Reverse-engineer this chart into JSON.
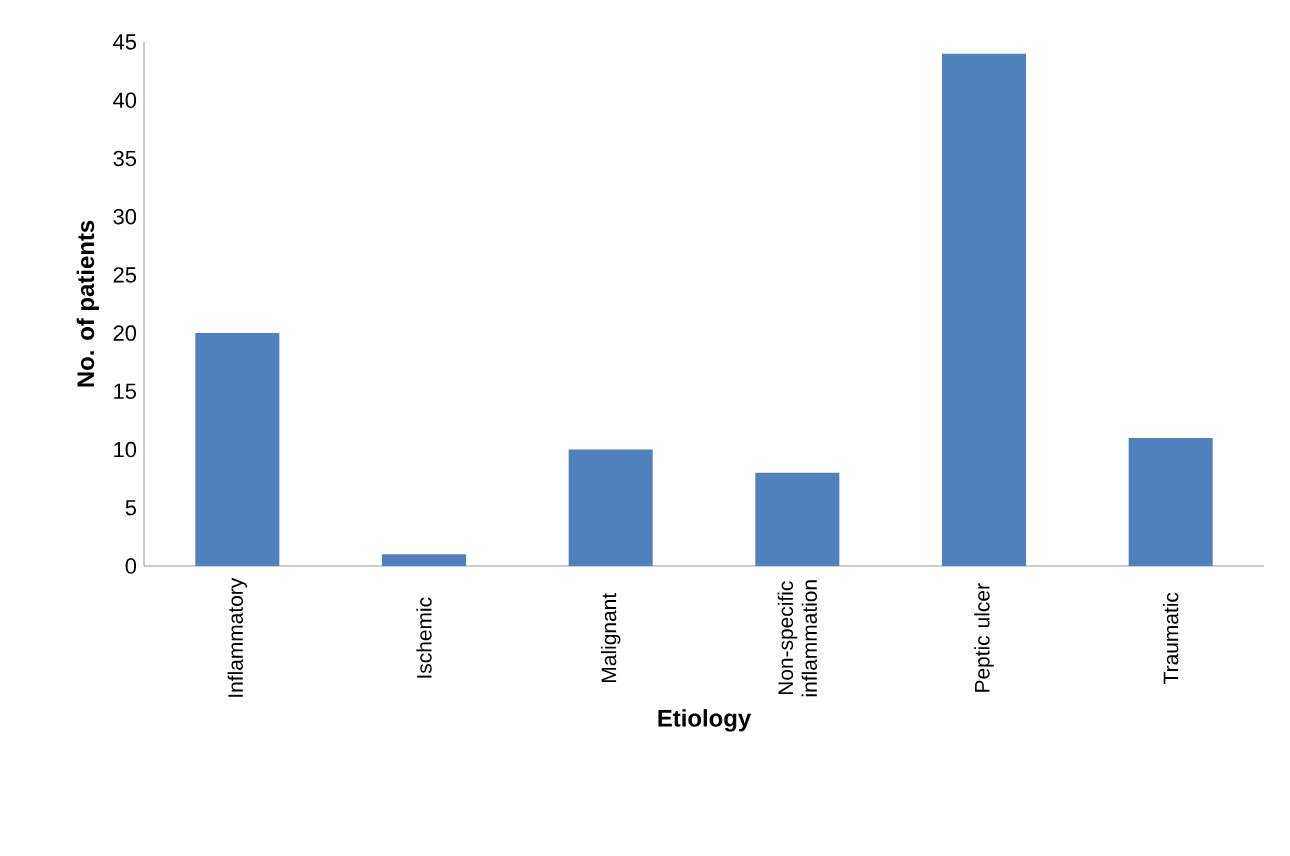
{
  "chart_data": {
    "type": "bar",
    "xlabel": "Etiology",
    "ylabel": "No. of patients",
    "categories": [
      "Inflammatory",
      "Ischemic",
      "Malignant",
      "Non-specific inflammation",
      "Peptic ulcer",
      "Traumatic"
    ],
    "values": [
      20,
      1,
      10,
      8,
      44,
      11
    ],
    "color": "#4f81bd",
    "ylim": [
      0,
      45
    ],
    "yticks": [
      0,
      5,
      10,
      15,
      20,
      25,
      30,
      35,
      40,
      45
    ],
    "grid": false
  }
}
